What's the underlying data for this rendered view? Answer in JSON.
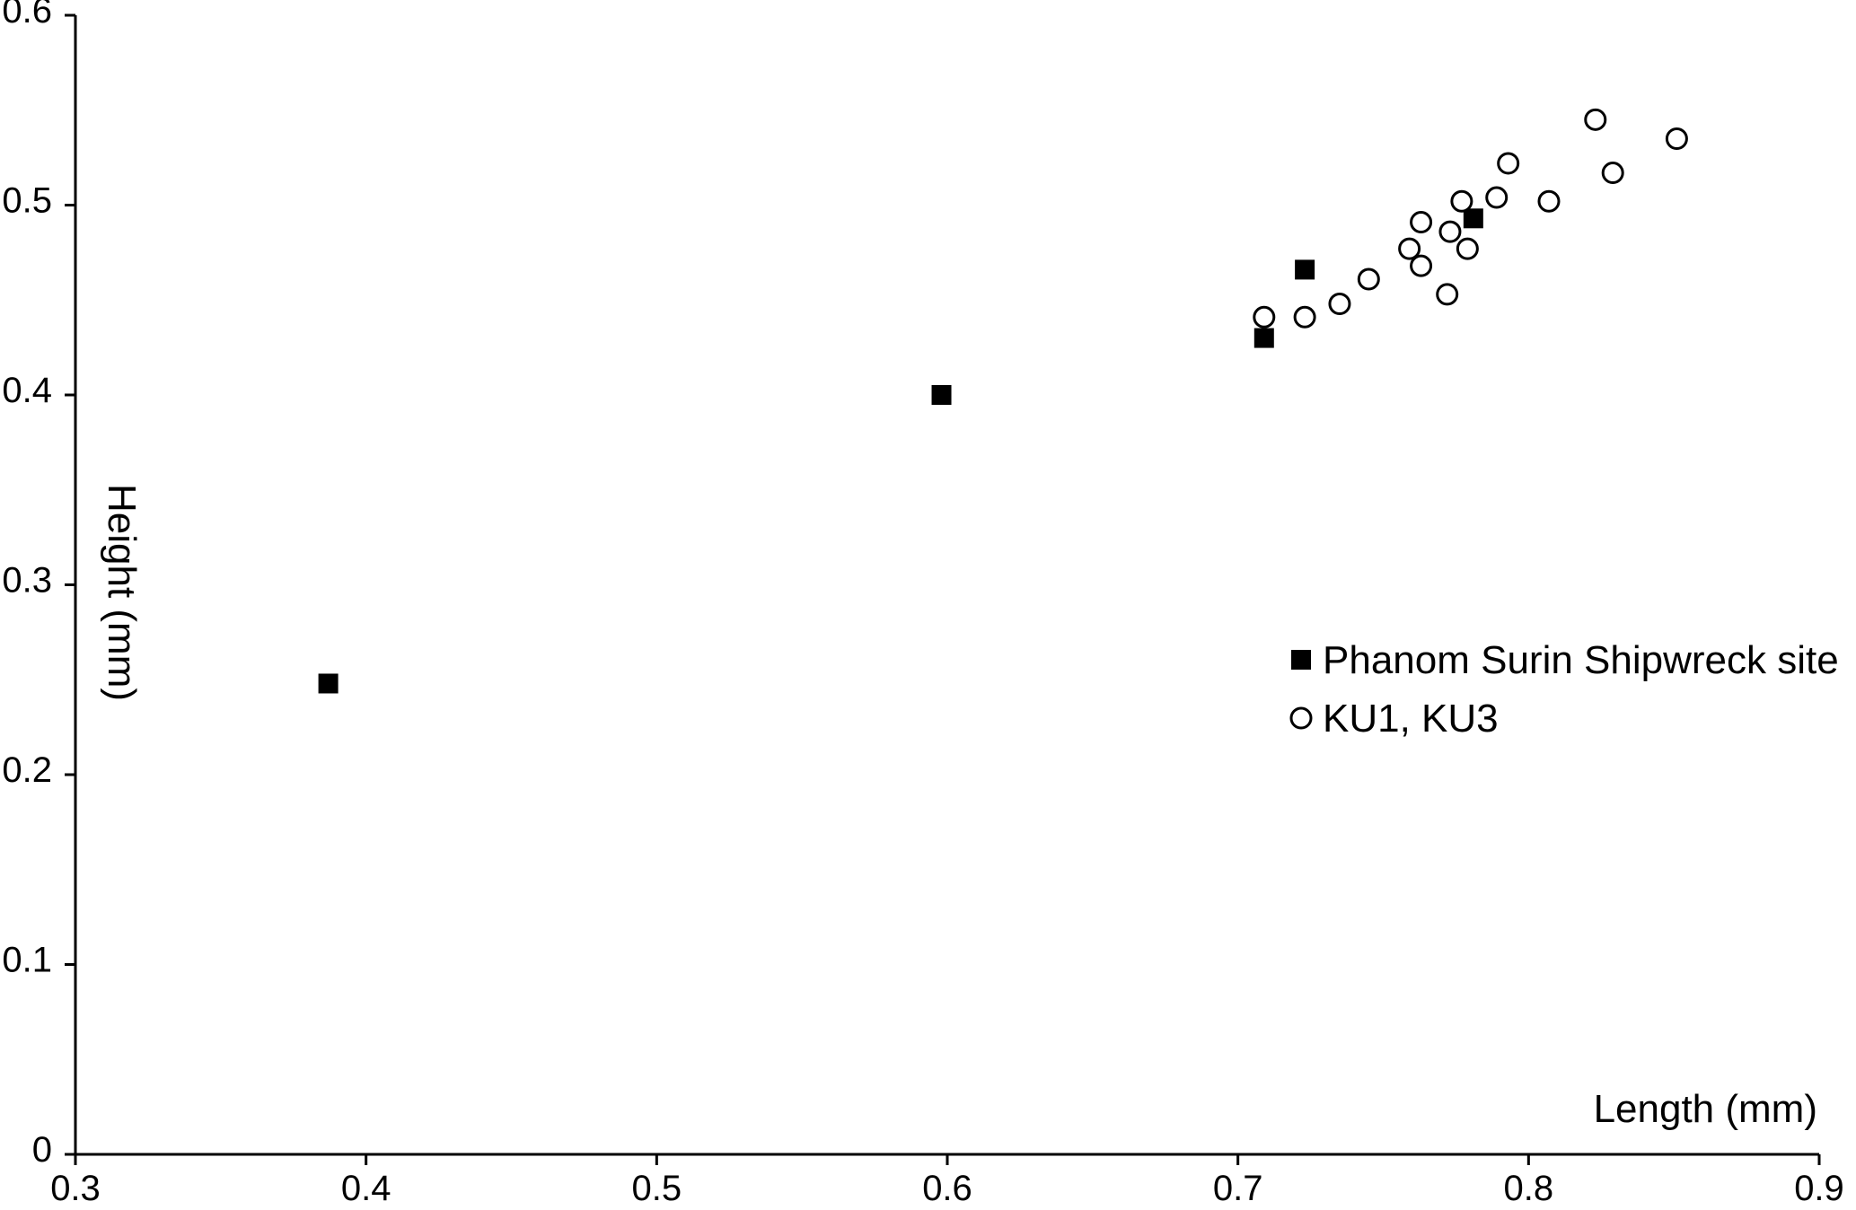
{
  "chart_data": {
    "type": "scatter",
    "title": "",
    "xlabel": "Length (mm)",
    "ylabel": "Height (mm)",
    "xlim": [
      0.3,
      0.9
    ],
    "ylim": [
      0,
      0.6
    ],
    "x_ticks": [
      0.3,
      0.4,
      0.5,
      0.6,
      0.7,
      0.8,
      0.9
    ],
    "y_ticks": [
      0,
      0.1,
      0.2,
      0.3,
      0.4,
      0.5,
      0.6
    ],
    "x_tick_labels": [
      "0.3",
      "0.4",
      "0.5",
      "0.6",
      "0.7",
      "0.8",
      "0.9"
    ],
    "y_tick_labels": [
      "0",
      "0.1",
      "0.2",
      "0.3",
      "0.4",
      "0.5",
      "0.6"
    ],
    "grid": false,
    "legend_position": "right",
    "series": [
      {
        "name": "Phanom Surin Shipwreck site",
        "marker": "filled-square",
        "color": "#000000",
        "points": [
          {
            "x": 0.387,
            "y": 0.248
          },
          {
            "x": 0.598,
            "y": 0.4
          },
          {
            "x": 0.709,
            "y": 0.43
          },
          {
            "x": 0.723,
            "y": 0.466
          },
          {
            "x": 0.781,
            "y": 0.493
          }
        ]
      },
      {
        "name": "KU1, KU3",
        "marker": "open-circle",
        "color": "#000000",
        "points": [
          {
            "x": 0.709,
            "y": 0.441
          },
          {
            "x": 0.723,
            "y": 0.441
          },
          {
            "x": 0.735,
            "y": 0.448
          },
          {
            "x": 0.745,
            "y": 0.461
          },
          {
            "x": 0.759,
            "y": 0.477
          },
          {
            "x": 0.763,
            "y": 0.468
          },
          {
            "x": 0.763,
            "y": 0.491
          },
          {
            "x": 0.772,
            "y": 0.453
          },
          {
            "x": 0.773,
            "y": 0.486
          },
          {
            "x": 0.777,
            "y": 0.502
          },
          {
            "x": 0.779,
            "y": 0.477
          },
          {
            "x": 0.789,
            "y": 0.504
          },
          {
            "x": 0.793,
            "y": 0.522
          },
          {
            "x": 0.807,
            "y": 0.502
          },
          {
            "x": 0.823,
            "y": 0.545
          },
          {
            "x": 0.829,
            "y": 0.517
          },
          {
            "x": 0.851,
            "y": 0.535
          }
        ]
      }
    ]
  }
}
